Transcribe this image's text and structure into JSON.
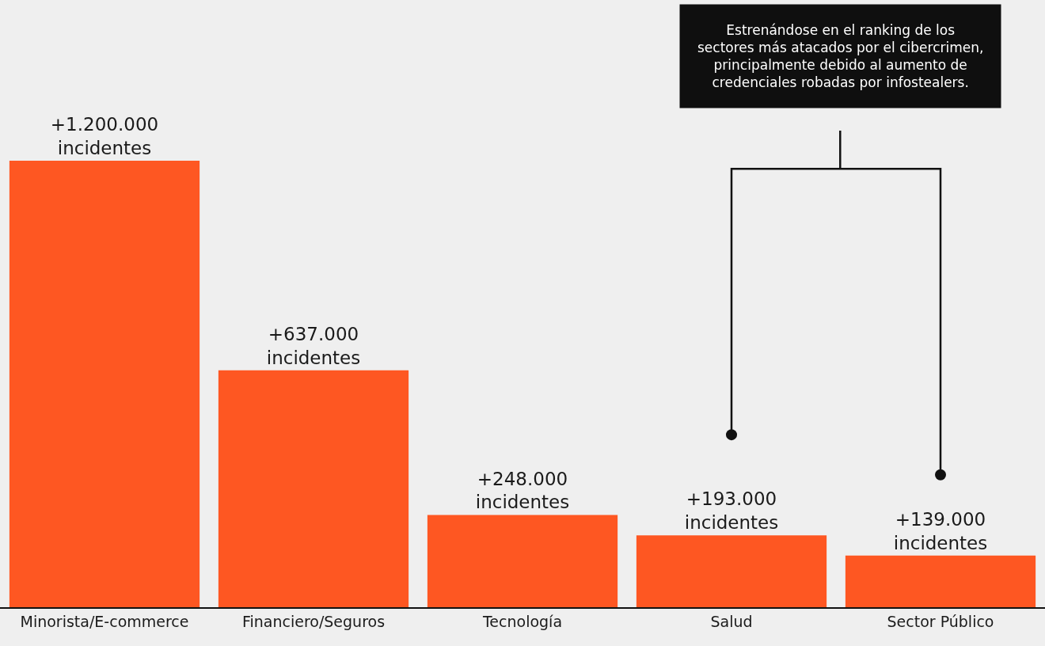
{
  "chart_data": {
    "type": "bar",
    "categories": [
      "Minorista/E-commerce",
      "Financiero/Seguros",
      "Tecnología",
      "Salud",
      "Sector Público"
    ],
    "values": [
      1200000,
      637000,
      248000,
      193000,
      139000
    ],
    "color": "#fe5722",
    "value_labels": [
      "+1.200.000\nincidentes",
      "+637.000\nincidentes",
      "+248.000\nincidentes",
      "+193.000\nincidentes",
      "+139.000\nincidentes"
    ],
    "annotations": [
      "Estrenándose en el ranking de los\nsectores más atacados por el cibercrimen,\nprincipalmente debido al aumento de\ncredenciales robadas por infostealers."
    ]
  }
}
